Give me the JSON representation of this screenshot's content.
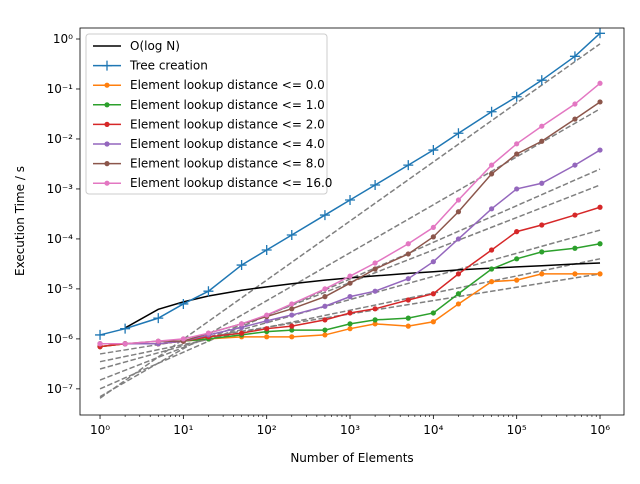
{
  "chart_data": {
    "type": "line",
    "log_x": true,
    "log_y": true,
    "xlabel": "Number of Elements",
    "ylabel": "Execution Time / s",
    "x": [
      1,
      2,
      5,
      10,
      20,
      50,
      100,
      200,
      500,
      1000,
      2000,
      5000,
      10000,
      20000,
      50000,
      100000,
      200000,
      500000,
      1000000
    ],
    "xlim": [
      0.575,
      1940000
    ],
    "ylim": [
      3e-08,
      1.66
    ],
    "xticks": [
      {
        "value": 1,
        "label": "10⁰"
      },
      {
        "value": 10,
        "label": "10¹"
      },
      {
        "value": 100,
        "label": "10²"
      },
      {
        "value": 1000,
        "label": "10³"
      },
      {
        "value": 10000,
        "label": "10⁴"
      },
      {
        "value": 100000,
        "label": "10⁵"
      },
      {
        "value": 1000000,
        "label": "10⁶"
      }
    ],
    "yticks": [
      {
        "value": 1e-07,
        "label": "10⁻⁷"
      },
      {
        "value": 1e-06,
        "label": "10⁻⁶"
      },
      {
        "value": 1e-05,
        "label": "10⁻⁵"
      },
      {
        "value": 0.0001,
        "label": "10⁻⁴"
      },
      {
        "value": 0.001,
        "label": "10⁻³"
      },
      {
        "value": 0.01,
        "label": "10⁻²"
      },
      {
        "value": 0.1,
        "label": "10⁻¹"
      },
      {
        "value": 1,
        "label": "10⁰"
      }
    ],
    "legend_position": "upper left",
    "series": [
      {
        "name": "O(log N)",
        "color": "#000000",
        "marker": "none",
        "values": [
          null,
          1.66e-06,
          3.9e-06,
          5.5e-06,
          7.2e-06,
          9.4e-06,
          1.1e-05,
          1.27e-05,
          1.5e-05,
          1.66e-05,
          1.82e-05,
          2.04e-05,
          2.2e-05,
          2.4e-05,
          2.6e-05,
          2.76e-05,
          2.9e-05,
          3.15e-05,
          3.3e-05
        ]
      },
      {
        "name": "Tree creation",
        "color": "#1f77b4",
        "marker": "plus",
        "values": [
          1.2e-06,
          1.6e-06,
          2.6e-06,
          5e-06,
          9e-06,
          3e-05,
          6e-05,
          0.00012,
          0.0003,
          0.0006,
          0.0012,
          0.003,
          0.006,
          0.013,
          0.035,
          0.07,
          0.15,
          0.45,
          1.3
        ]
      },
      {
        "name": "Element lookup distance <= 0.0",
        "color": "#ff7f0e",
        "marker": "circle",
        "values": [
          7e-07,
          8e-07,
          8e-07,
          9e-07,
          1e-06,
          1.1e-06,
          1.1e-06,
          1.1e-06,
          1.2e-06,
          1.6e-06,
          2e-06,
          1.8e-06,
          2.2e-06,
          5e-06,
          1.4e-05,
          1.5e-05,
          2e-05,
          2e-05,
          2e-05
        ]
      },
      {
        "name": "Element lookup distance <= 1.0",
        "color": "#2ca02c",
        "marker": "circle",
        "values": [
          7e-07,
          8e-07,
          8e-07,
          9e-07,
          1e-06,
          1.2e-06,
          1.4e-06,
          1.5e-06,
          1.5e-06,
          2e-06,
          2.4e-06,
          2.6e-06,
          3.3e-06,
          8e-06,
          2.5e-05,
          4e-05,
          5.5e-05,
          6.5e-05,
          8e-05
        ]
      },
      {
        "name": "Element lookup distance <= 2.0",
        "color": "#d62728",
        "marker": "circle",
        "values": [
          7e-07,
          8e-07,
          8e-07,
          9e-07,
          1.1e-06,
          1.3e-06,
          1.6e-06,
          1.8e-06,
          2.4e-06,
          3.3e-06,
          4e-06,
          6e-06,
          8e-06,
          2e-05,
          6e-05,
          0.00014,
          0.00019,
          0.0003,
          0.00043
        ]
      },
      {
        "name": "Element lookup distance <= 4.0",
        "color": "#9467bd",
        "marker": "circle",
        "values": [
          8e-07,
          8e-07,
          8e-07,
          9e-07,
          1.2e-06,
          1.7e-06,
          2.3e-06,
          3e-06,
          4.5e-06,
          7e-06,
          9e-06,
          1.6e-05,
          3.5e-05,
          0.0001,
          0.0004,
          0.001,
          0.0013,
          0.003,
          0.006
        ]
      },
      {
        "name": "Element lookup distance <= 8.0",
        "color": "#8c564b",
        "marker": "circle",
        "values": [
          8e-07,
          8e-07,
          9e-07,
          9e-07,
          1.3e-06,
          2e-06,
          2.8e-06,
          4e-06,
          7e-06,
          1.3e-05,
          2.5e-05,
          5e-05,
          0.00011,
          0.00035,
          0.002,
          0.005,
          0.009,
          0.025,
          0.055
        ]
      },
      {
        "name": "Element lookup distance <= 16.0",
        "color": "#e377c2",
        "marker": "circle",
        "values": [
          8e-07,
          8e-07,
          9e-07,
          1e-06,
          1.3e-06,
          2e-06,
          3e-06,
          5e-06,
          1e-05,
          1.8e-05,
          3.3e-05,
          8e-05,
          0.00017,
          0.0006,
          0.003,
          0.008,
          0.018,
          0.05,
          0.13
        ]
      }
    ],
    "fit_color": "#808080",
    "fit_x": [
      1,
      1000000
    ],
    "fit_lines": [
      [
        6.5e-08,
        0.8
      ],
      [
        7e-08,
        0.04
      ],
      [
        1e-07,
        0.0025
      ],
      [
        1.5e-07,
        0.0012
      ],
      [
        2.5e-07,
        0.00015
      ],
      [
        3.5e-07,
        4e-05
      ],
      [
        5e-07,
        2e-05
      ]
    ]
  }
}
